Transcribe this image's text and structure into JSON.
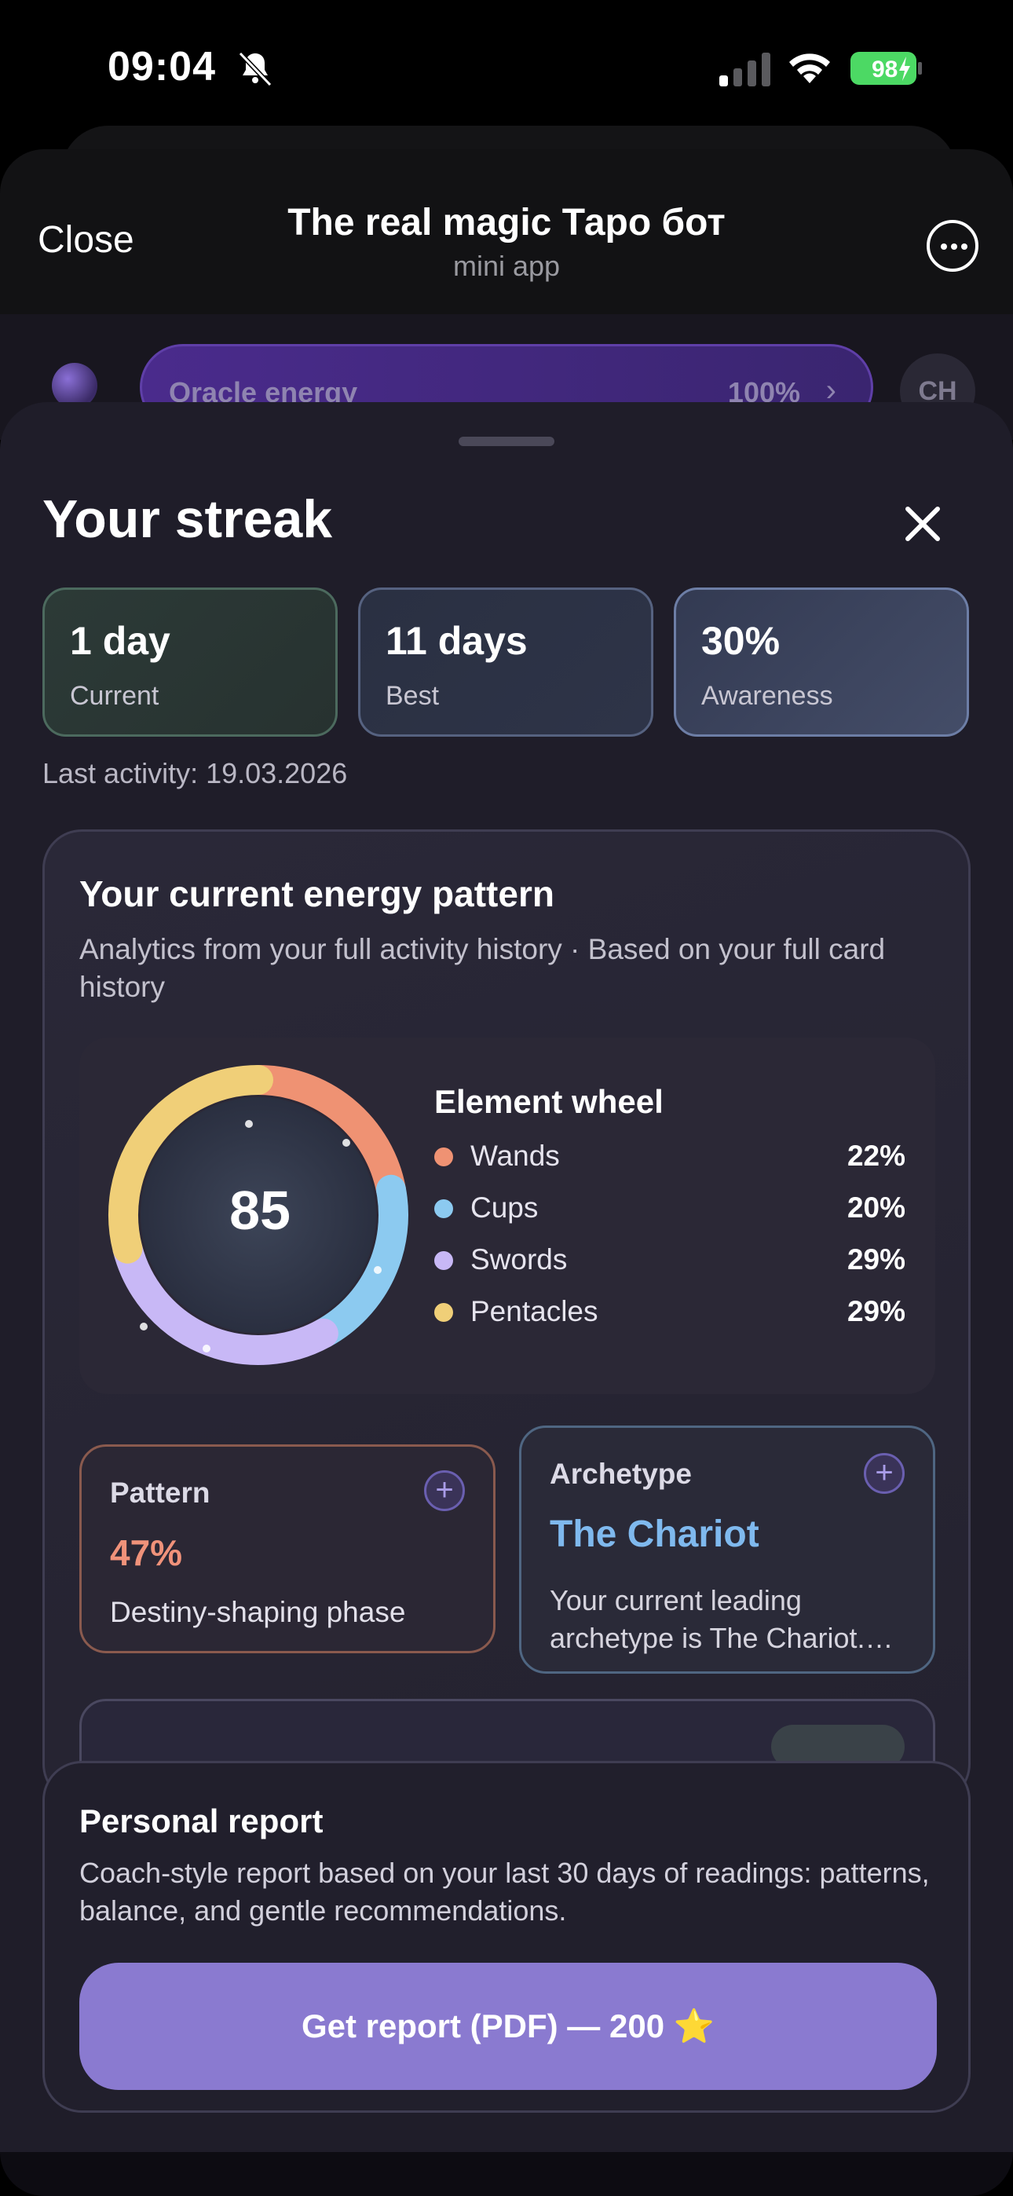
{
  "status_bar": {
    "time": "09:04",
    "battery": "98",
    "icons": [
      "bell-slash-icon",
      "signal-icon",
      "wifi-icon",
      "battery-icon"
    ]
  },
  "app_header": {
    "close_label": "Close",
    "title": "The real magic Таро бот",
    "subtitle": "mini app",
    "more_icon": "ellipsis-circle-icon"
  },
  "energy_bar": {
    "label": "Oracle energy",
    "value": "100%",
    "avatar_initials": "CH"
  },
  "sheet": {
    "title": "Your streak",
    "stats": [
      {
        "value": "1 day",
        "label": "Current"
      },
      {
        "value": "11 days",
        "label": "Best"
      },
      {
        "value": "30%",
        "label": "Awareness"
      }
    ],
    "last_activity": "Last activity: 19.03.2026"
  },
  "energy_pattern": {
    "title": "Your current energy pattern",
    "subtitle": "Analytics from your full activity history · Based on your full card history",
    "wheel": {
      "score": "85",
      "title": "Element wheel",
      "elements": [
        {
          "name": "Wands",
          "pct": "22%",
          "value": 22,
          "color": "#ef9273"
        },
        {
          "name": "Cups",
          "pct": "20%",
          "value": 20,
          "color": "#8ccaf0"
        },
        {
          "name": "Swords",
          "pct": "29%",
          "value": 29,
          "color": "#c8b8f6"
        },
        {
          "name": "Pentacles",
          "pct": "29%",
          "value": 29,
          "color": "#f0cf78"
        }
      ]
    },
    "pattern_card": {
      "title": "Pattern",
      "value": "47%",
      "description": "Destiny-shaping phase"
    },
    "archetype_card": {
      "title": "Archetype",
      "value": "The Chariot",
      "description": "Your current leading archetype is The Chariot.…"
    }
  },
  "personal_report": {
    "title": "Personal report",
    "description": "Coach-style report based on your last 30 days of readings: patterns, balance, and gentle recommendations.",
    "button_label": "Get report (PDF) — 200 ⭐"
  },
  "colors": {
    "accent": "#8a7ad0",
    "pattern_accent": "#f0927a",
    "archetype_accent": "#7fb9ee"
  }
}
